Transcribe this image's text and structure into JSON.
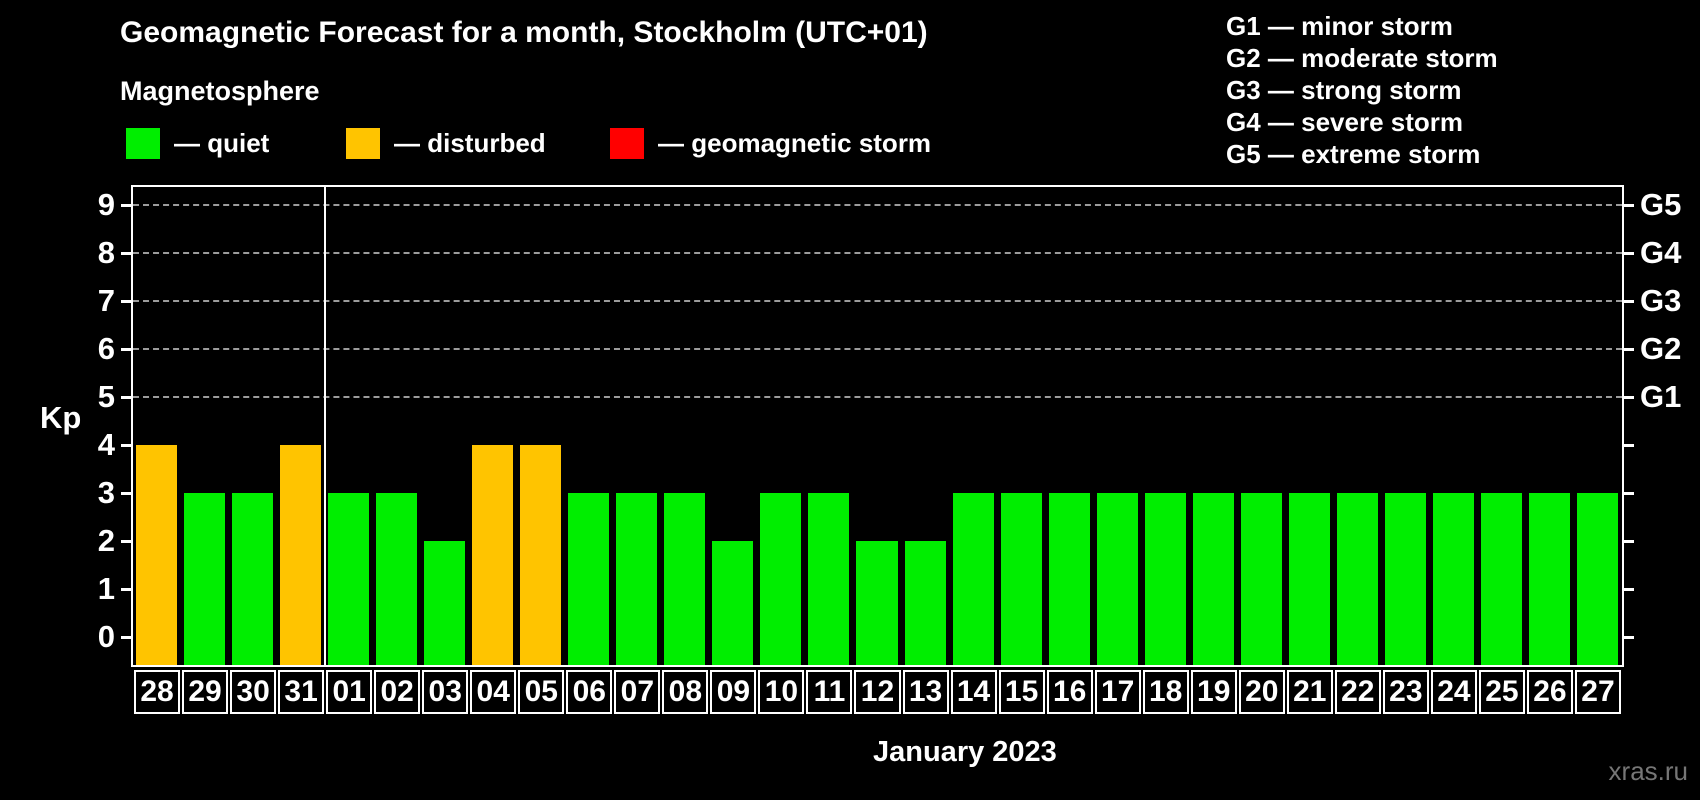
{
  "header": {
    "title": "Geomagnetic Forecast for a month, Stockholm (UTC+01)",
    "subtitle": "Magnetosphere"
  },
  "legend": {
    "items": [
      {
        "key": "quiet",
        "label": "— quiet",
        "color": "#00ee00",
        "x": 126
      },
      {
        "key": "disturbed",
        "label": "— disturbed",
        "color": "#ffc400",
        "x": 346
      },
      {
        "key": "storm",
        "label": "— geomagnetic storm",
        "color": "#ff0000",
        "x": 610
      }
    ]
  },
  "g_legend": {
    "items": [
      "G1 — minor storm",
      "G2 — moderate storm",
      "G3 — strong storm",
      "G4 — severe storm",
      "G5 — extreme storm"
    ]
  },
  "chart_data": {
    "type": "bar",
    "title": "Geomagnetic Forecast for a month, Stockholm (UTC+01)",
    "xlabel": "January 2023",
    "ylabel": "Kp",
    "ylim": [
      0,
      9
    ],
    "y_ticks": [
      0,
      1,
      2,
      3,
      4,
      5,
      6,
      7,
      8,
      9
    ],
    "grid_levels": [
      5,
      6,
      7,
      8,
      9
    ],
    "grid_on": true,
    "legend_position": "top-left",
    "month_boundary_after_index": 3,
    "categories": [
      "28",
      "29",
      "30",
      "31",
      "01",
      "02",
      "03",
      "04",
      "05",
      "06",
      "07",
      "08",
      "09",
      "10",
      "11",
      "12",
      "13",
      "14",
      "15",
      "16",
      "17",
      "18",
      "19",
      "20",
      "21",
      "22",
      "23",
      "24",
      "25",
      "26",
      "27"
    ],
    "values": [
      4,
      3,
      3,
      4,
      3,
      3,
      2,
      4,
      4,
      3,
      3,
      3,
      2,
      3,
      3,
      2,
      2,
      3,
      3,
      3,
      3,
      3,
      3,
      3,
      3,
      3,
      3,
      3,
      3,
      3,
      3
    ],
    "statuses": [
      "disturbed",
      "quiet",
      "quiet",
      "disturbed",
      "quiet",
      "quiet",
      "quiet",
      "disturbed",
      "disturbed",
      "quiet",
      "quiet",
      "quiet",
      "quiet",
      "quiet",
      "quiet",
      "quiet",
      "quiet",
      "quiet",
      "quiet",
      "quiet",
      "quiet",
      "quiet",
      "quiet",
      "quiet",
      "quiet",
      "quiet",
      "quiet",
      "quiet",
      "quiet",
      "quiet",
      "quiet"
    ],
    "status_colors": {
      "quiet": "#00ee00",
      "disturbed": "#ffc400",
      "storm": "#ff0000"
    },
    "right_axis_labels": [
      {
        "label": "G1",
        "level": 5
      },
      {
        "label": "G2",
        "level": 6
      },
      {
        "label": "G3",
        "level": 7
      },
      {
        "label": "G4",
        "level": 8
      },
      {
        "label": "G5",
        "level": 9
      }
    ]
  },
  "footer": {
    "watermark": "xras.ru"
  }
}
